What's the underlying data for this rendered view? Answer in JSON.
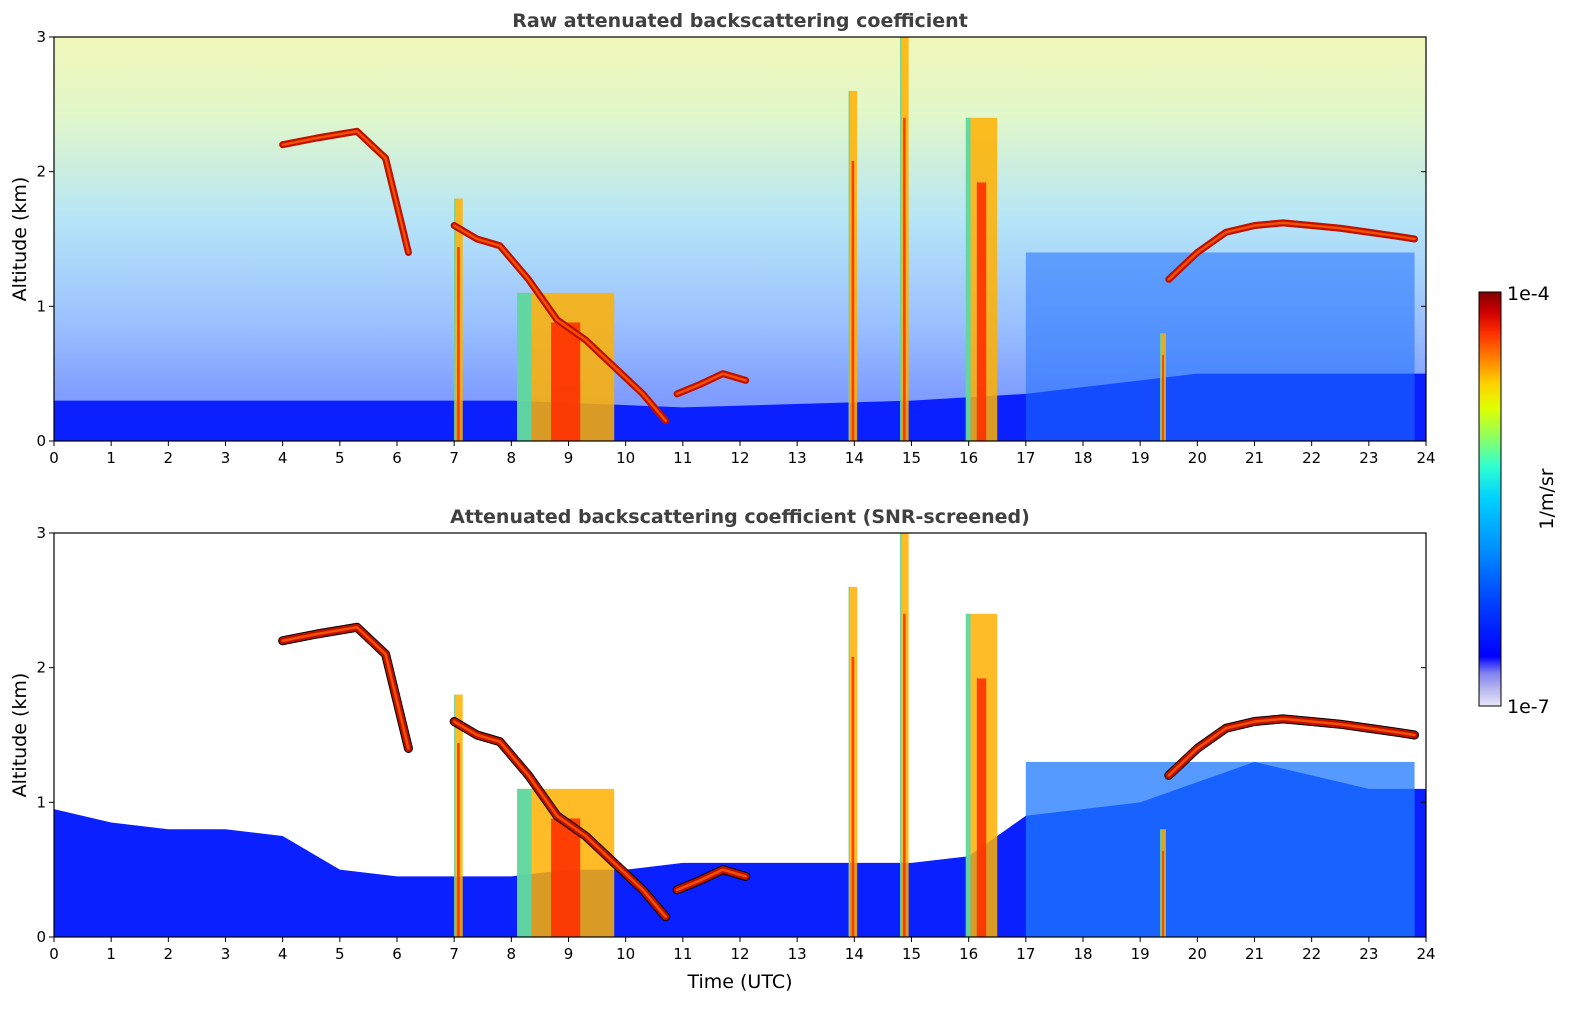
{
  "chart_data": [
    {
      "type": "heatmap",
      "title": "Raw attenuated backscattering coefficient",
      "xlabel": "",
      "ylabel": "Altitude (km)",
      "xlim": [
        0,
        24
      ],
      "ylim": [
        0,
        3
      ],
      "xticks": [
        "0",
        "1",
        "2",
        "3",
        "4",
        "5",
        "6",
        "7",
        "8",
        "9",
        "10",
        "11",
        "12",
        "13",
        "14",
        "15",
        "16",
        "17",
        "18",
        "19",
        "20",
        "21",
        "22",
        "23",
        "24"
      ],
      "yticks": [
        "0",
        "1",
        "2",
        "3"
      ],
      "features": [
        {
          "type": "boundary_layer",
          "t": [
            0,
            4,
            8,
            11,
            15,
            17,
            20,
            24
          ],
          "top_km": [
            0.3,
            0.3,
            0.3,
            0.25,
            0.3,
            0.35,
            0.5,
            0.5
          ]
        },
        {
          "type": "cloud_layer",
          "t": [
            4.0,
            4.6,
            5.3,
            5.8,
            6.2
          ],
          "alt_km": [
            2.2,
            2.25,
            2.3,
            2.1,
            1.4
          ]
        },
        {
          "type": "cloud_layer",
          "t": [
            7.0,
            7.4,
            7.8,
            8.3,
            8.8,
            9.3,
            9.8,
            10.3,
            10.7
          ],
          "alt_km": [
            1.6,
            1.5,
            1.45,
            1.2,
            0.9,
            0.75,
            0.55,
            0.35,
            0.15
          ]
        },
        {
          "type": "cloud_layer",
          "t": [
            10.9,
            11.3,
            11.7,
            12.1
          ],
          "alt_km": [
            0.35,
            0.42,
            0.5,
            0.45
          ]
        },
        {
          "type": "cloud_layer",
          "t": [
            19.5,
            20.0,
            20.5,
            21.0,
            21.5,
            22.0,
            22.5,
            23.0,
            23.5,
            23.8
          ],
          "alt_km": [
            1.2,
            1.4,
            1.55,
            1.6,
            1.62,
            1.6,
            1.58,
            1.55,
            1.52,
            1.5
          ]
        },
        {
          "type": "precipitation",
          "t_start": 8.1,
          "t_end": 9.8,
          "top_km": 1.1
        },
        {
          "type": "precipitation",
          "t_start": 15.95,
          "t_end": 16.5,
          "top_km": 2.4
        },
        {
          "type": "precipitation",
          "t_start": 7.0,
          "t_end": 7.15,
          "top_km": 1.8
        },
        {
          "type": "precipitation",
          "t_start": 13.9,
          "t_end": 14.05,
          "top_km": 2.6
        },
        {
          "type": "precipitation",
          "t_start": 14.8,
          "t_end": 14.95,
          "top_km": 3.0
        },
        {
          "type": "precipitation",
          "t_start": 19.35,
          "t_end": 19.45,
          "top_km": 0.8
        }
      ]
    },
    {
      "type": "heatmap",
      "title": "Attenuated backscattering coefficient (SNR-screened)",
      "xlabel": "Time (UTC)",
      "ylabel": "Altitude (km)",
      "xlim": [
        0,
        24
      ],
      "ylim": [
        0,
        3
      ],
      "xticks": [
        "0",
        "1",
        "2",
        "3",
        "4",
        "5",
        "6",
        "7",
        "8",
        "9",
        "10",
        "11",
        "12",
        "13",
        "14",
        "15",
        "16",
        "17",
        "18",
        "19",
        "20",
        "21",
        "22",
        "23",
        "24"
      ],
      "yticks": [
        "0",
        "1",
        "2",
        "3"
      ],
      "features": [
        {
          "type": "valid_signal_top",
          "t": [
            0,
            1,
            2,
            3,
            4,
            5,
            6,
            7,
            8,
            9,
            10,
            11,
            12,
            13,
            14,
            15,
            16,
            17,
            18,
            19,
            20,
            21,
            22,
            23,
            24
          ],
          "top_km": [
            0.95,
            0.85,
            0.8,
            0.8,
            0.75,
            0.5,
            0.45,
            0.45,
            0.45,
            0.5,
            0.5,
            0.55,
            0.55,
            0.55,
            0.55,
            0.55,
            0.6,
            0.9,
            0.95,
            1.0,
            1.15,
            1.3,
            1.2,
            1.1,
            1.1
          ]
        }
      ]
    }
  ],
  "colorbar": {
    "label": "1/m/sr",
    "max_label": "1e-4",
    "min_label": "1e-7",
    "scale": "log",
    "colormap": "jet",
    "colors": [
      "#e8e8f8",
      "#b8b8f0",
      "#8080f0",
      "#0000ff",
      "#0040ff",
      "#0090ff",
      "#00d0ff",
      "#30ffd0",
      "#90ff60",
      "#e0ff00",
      "#ffd000",
      "#ff8000",
      "#ff3000",
      "#d00000",
      "#800000"
    ]
  },
  "colors": {
    "title": "#404040",
    "screened_out": "#ffffff",
    "strong_edge": "#000000"
  }
}
